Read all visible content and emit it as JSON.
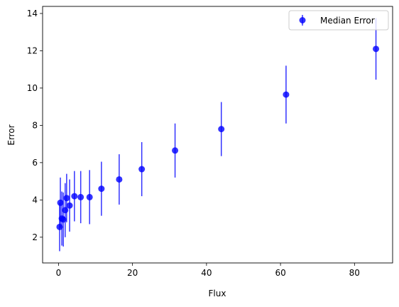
{
  "chart_data": {
    "type": "scatter",
    "title": "",
    "xlabel": "Flux",
    "ylabel": "Error",
    "xlim": [
      -4.3,
      90.3
    ],
    "ylim": [
      0.62,
      14.38
    ],
    "xticks": [
      0,
      20,
      40,
      60,
      80
    ],
    "yticks": [
      2,
      4,
      6,
      8,
      10,
      12,
      14
    ],
    "grid": false,
    "legend_position": "top-right",
    "series": [
      {
        "name": "Median Error",
        "color": "#0000ff",
        "marker": "circle",
        "points": [
          {
            "x": 0.3,
            "y": 2.55,
            "err": 1.3
          },
          {
            "x": 0.5,
            "y": 3.85,
            "err": 1.35
          },
          {
            "x": 0.9,
            "y": 3.0,
            "err": 1.45
          },
          {
            "x": 1.3,
            "y": 2.95,
            "err": 1.45
          },
          {
            "x": 1.8,
            "y": 3.45,
            "err": 1.45
          },
          {
            "x": 2.2,
            "y": 4.1,
            "err": 1.3
          },
          {
            "x": 3.0,
            "y": 3.7,
            "err": 1.4
          },
          {
            "x": 4.3,
            "y": 4.2,
            "err": 1.35
          },
          {
            "x": 6.0,
            "y": 4.15,
            "err": 1.4
          },
          {
            "x": 8.4,
            "y": 4.15,
            "err": 1.45
          },
          {
            "x": 11.6,
            "y": 4.6,
            "err": 1.45
          },
          {
            "x": 16.4,
            "y": 5.1,
            "err": 1.35
          },
          {
            "x": 22.5,
            "y": 5.65,
            "err": 1.45
          },
          {
            "x": 31.5,
            "y": 6.65,
            "err": 1.45
          },
          {
            "x": 44.0,
            "y": 7.8,
            "err": 1.45
          },
          {
            "x": 61.5,
            "y": 9.65,
            "err": 1.55
          },
          {
            "x": 85.8,
            "y": 12.1,
            "err": 1.65
          }
        ]
      }
    ]
  }
}
